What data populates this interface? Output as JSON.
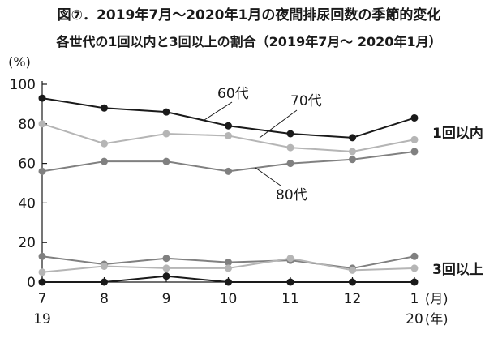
{
  "title": "図⑦．2019年7月～2020年1月の夜間排尿回数の季節的変化",
  "subtitle": "各世代の1回以内と3回以上の割合（2019年7月～ 2020年1月）",
  "chart_data": {
    "type": "line",
    "ylabel": "(%)",
    "ylim": [
      0,
      100
    ],
    "yticks": [
      0,
      20,
      40,
      60,
      80,
      100
    ],
    "categories": [
      "7",
      "8",
      "9",
      "10",
      "11",
      "12",
      "1"
    ],
    "year_labels": [
      "19",
      "",
      "",
      "",
      "",
      "",
      "20"
    ],
    "month_unit": "(月)",
    "year_unit": "(年)",
    "group_labels": {
      "within1": "1回以内",
      "over3": "3回以上"
    },
    "series": [
      {
        "name": "60代",
        "group": "within1",
        "color": "#1a1a1a",
        "values": [
          93,
          88,
          86,
          79,
          75,
          73,
          83
        ]
      },
      {
        "name": "70代",
        "group": "within1",
        "color": "#b5b5b5",
        "values": [
          80,
          70,
          75,
          74,
          68,
          66,
          72
        ]
      },
      {
        "name": "80代",
        "group": "within1",
        "color": "#808080",
        "values": [
          56,
          61,
          61,
          56,
          60,
          62,
          66
        ]
      },
      {
        "name": "",
        "group": "over3",
        "color": "#808080",
        "values": [
          13,
          9,
          12,
          10,
          11,
          7,
          13
        ]
      },
      {
        "name": "",
        "group": "over3",
        "color": "#b5b5b5",
        "values": [
          5,
          8,
          7,
          7,
          12,
          6,
          7
        ]
      },
      {
        "name": "",
        "group": "over3",
        "color": "#1a1a1a",
        "values": [
          0,
          0,
          3,
          0,
          0,
          0,
          0
        ]
      }
    ],
    "grid": false
  }
}
